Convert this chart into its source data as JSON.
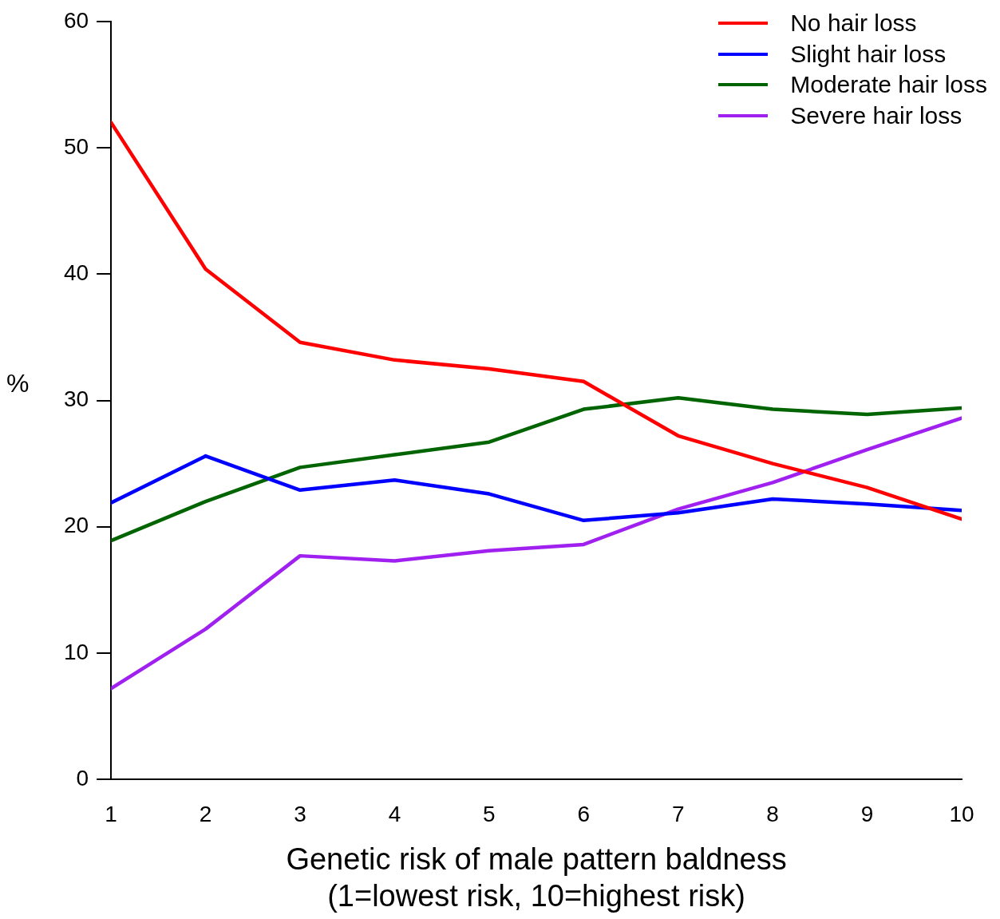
{
  "chart_data": {
    "type": "line",
    "xlabel": "Genetic risk of male pattern baldness\n(1=lowest risk, 10=highest risk)",
    "ylabel": "%",
    "x": [
      1,
      2,
      3,
      4,
      5,
      6,
      7,
      8,
      9,
      10
    ],
    "xlim": [
      1,
      10
    ],
    "xticks": [
      1,
      2,
      3,
      4,
      5,
      6,
      7,
      8,
      9,
      10
    ],
    "ylim": [
      0,
      60
    ],
    "yticks": [
      0,
      10,
      20,
      30,
      40,
      50,
      60
    ],
    "grid": false,
    "legend": "top right",
    "marker": "none",
    "line_style": "solid",
    "series": [
      {
        "name": "No hair loss",
        "color": "#ff0000",
        "values": [
          52,
          40.4,
          34.6,
          33.2,
          32.5,
          31.5,
          27.2,
          25.0,
          23.1,
          20.6
        ]
      },
      {
        "name": "Slight hair loss",
        "color": "#0000ff",
        "values": [
          21.9,
          25.6,
          22.9,
          23.7,
          22.6,
          20.5,
          21.1,
          22.2,
          21.8,
          21.3
        ]
      },
      {
        "name": "Moderate hair loss",
        "color": "#006400",
        "values": [
          18.9,
          22.0,
          24.7,
          25.7,
          26.7,
          29.3,
          30.2,
          29.3,
          28.9,
          29.4
        ]
      },
      {
        "name": "Severe hair loss",
        "color": "#a020f0",
        "values": [
          7.2,
          11.9,
          17.7,
          17.3,
          18.1,
          18.6,
          21.4,
          23.5,
          26.1,
          28.6
        ]
      }
    ]
  }
}
